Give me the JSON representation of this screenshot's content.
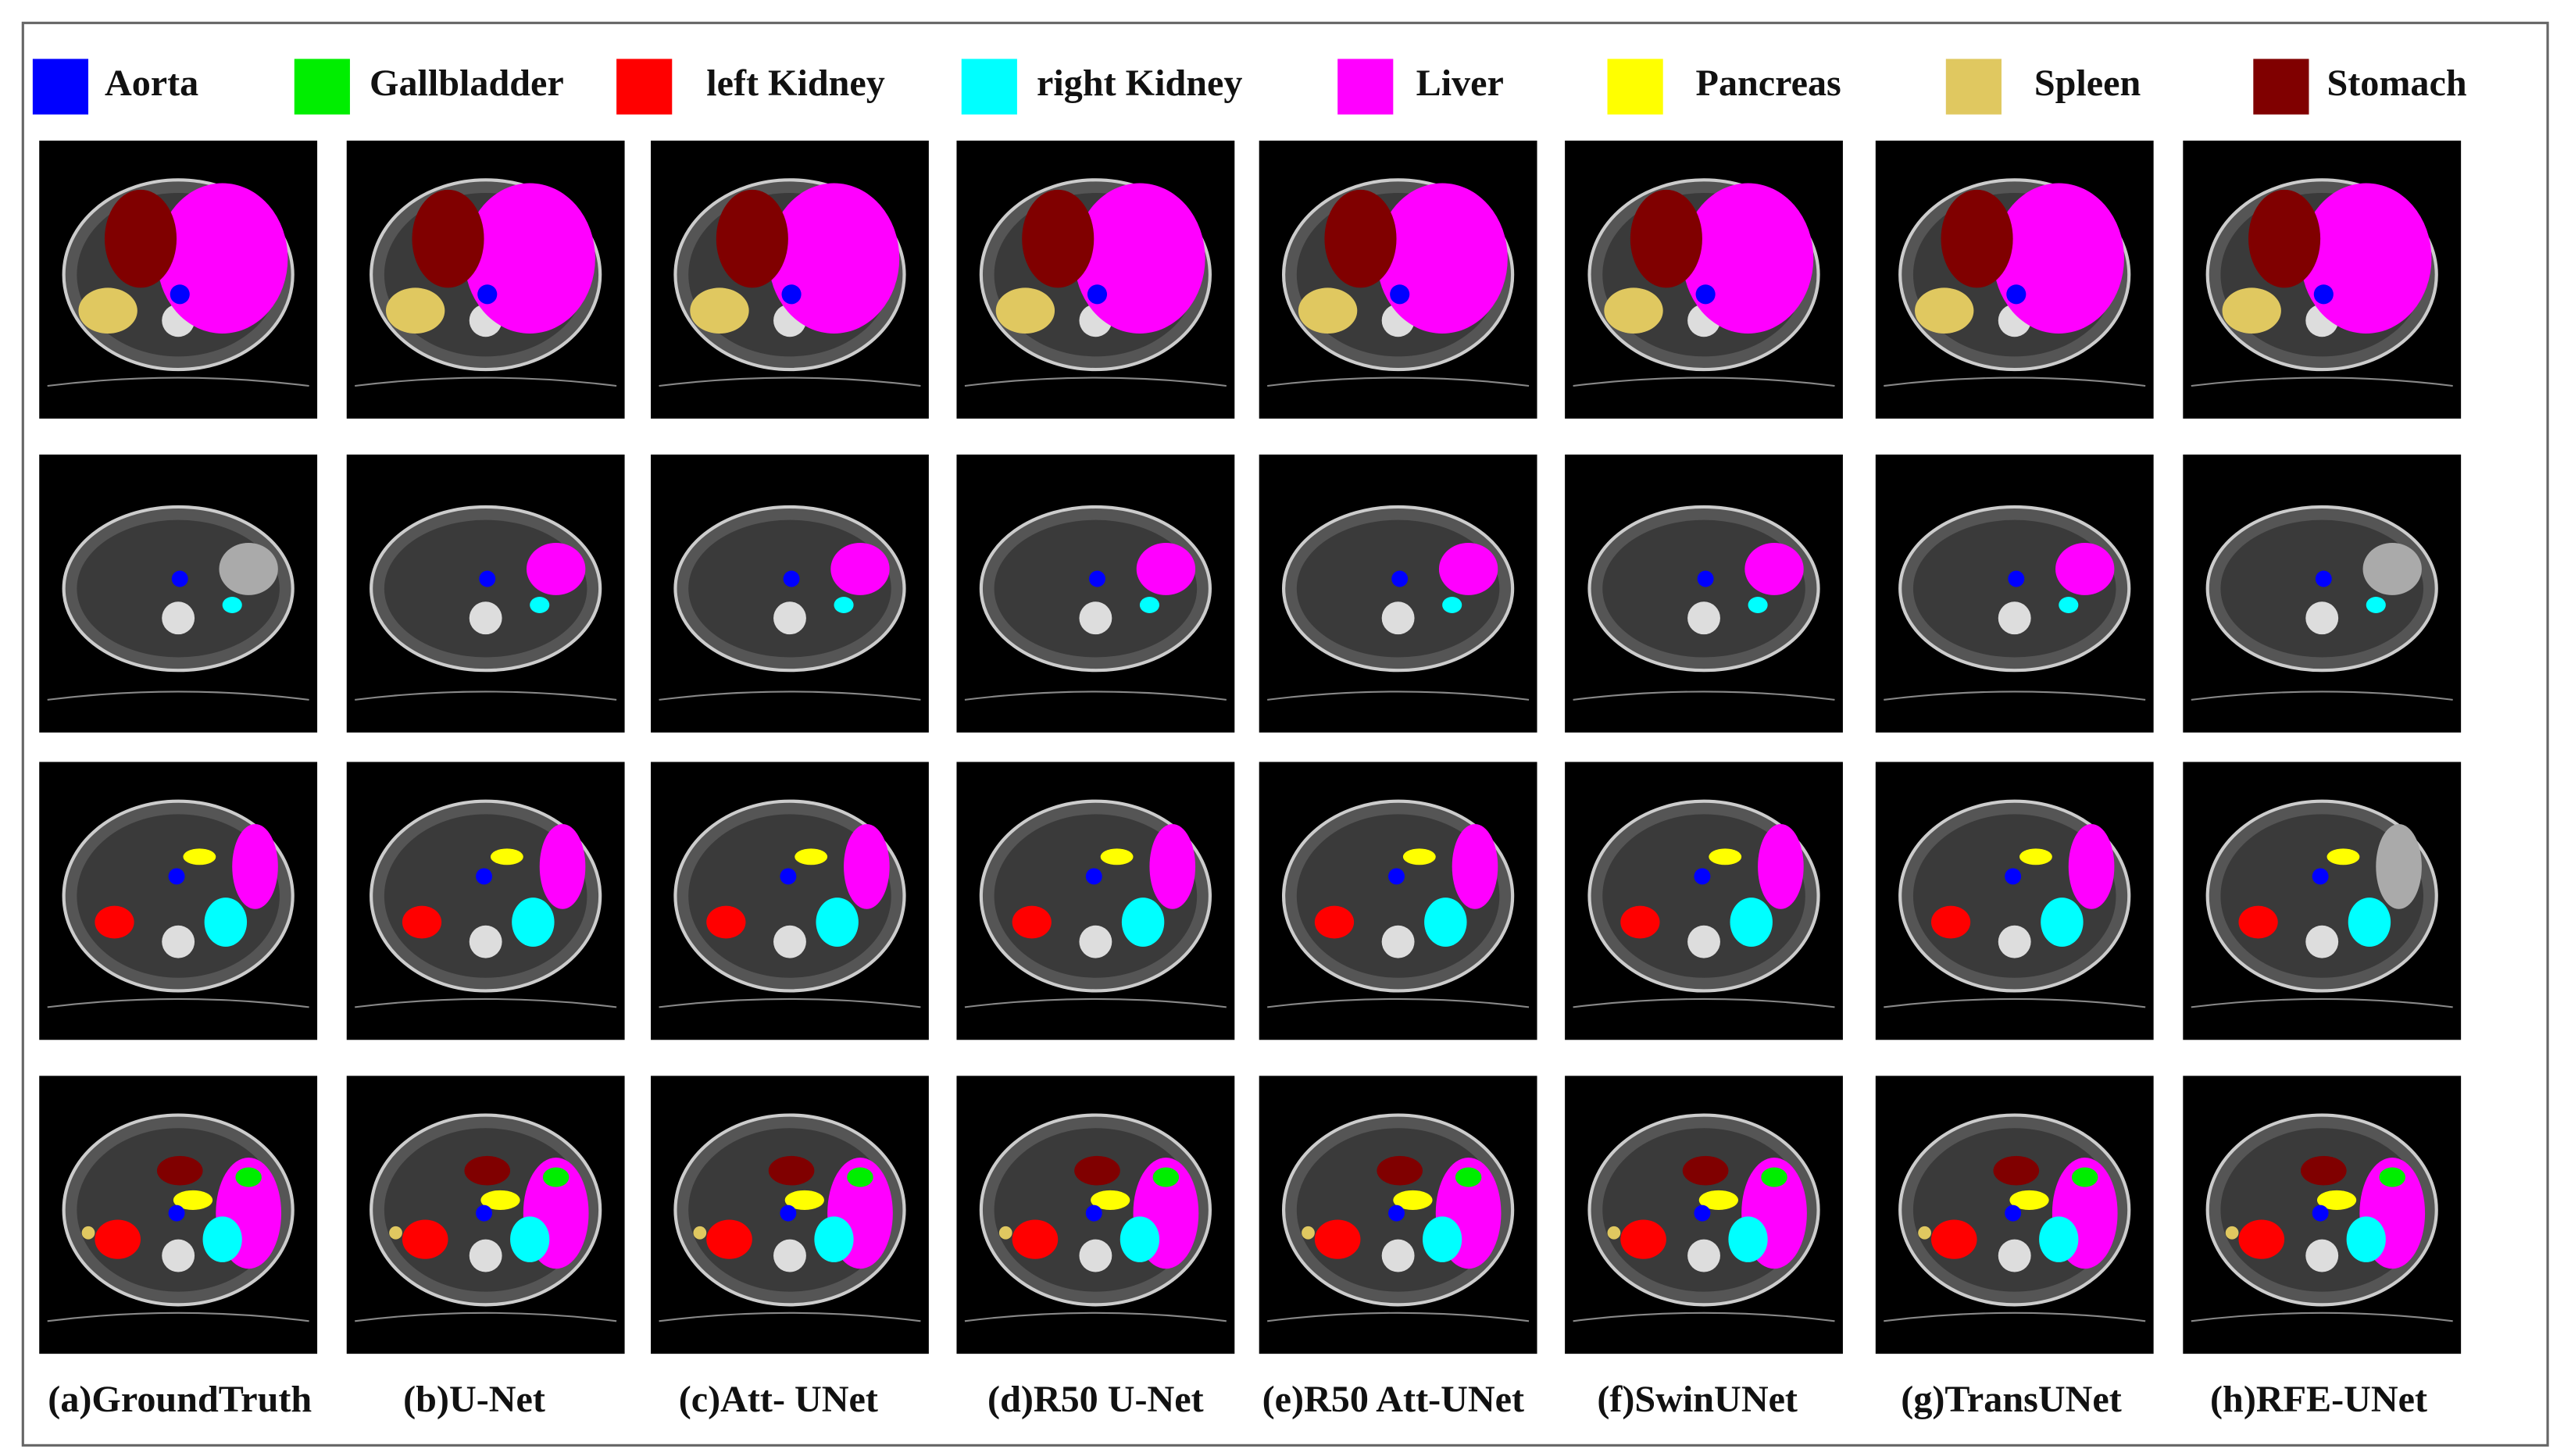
{
  "legend": {
    "items": [
      {
        "name": "Aorta",
        "color": "#0000ff"
      },
      {
        "name": "Gallbladder",
        "color": "#00ee00"
      },
      {
        "name": "left Kidney",
        "color": "#ff0000"
      },
      {
        "name": "right Kidney",
        "color": "#00ffff"
      },
      {
        "name": "Liver",
        "color": "#ff00ff"
      },
      {
        "name": "Pancreas",
        "color": "#ffff00"
      },
      {
        "name": "Spleen",
        "color": "#e0c860"
      },
      {
        "name": "Stomach",
        "color": "#800000"
      }
    ]
  },
  "columns": [
    "(a)GroundTruth",
    "(b)U-Net",
    "(c)Att- UNet",
    "(d)R50 U-Net",
    "(e)R50 Att-UNet",
    "(f)SwinUNet",
    "(g)TransUNet",
    "(h)RFE-UNet"
  ]
}
